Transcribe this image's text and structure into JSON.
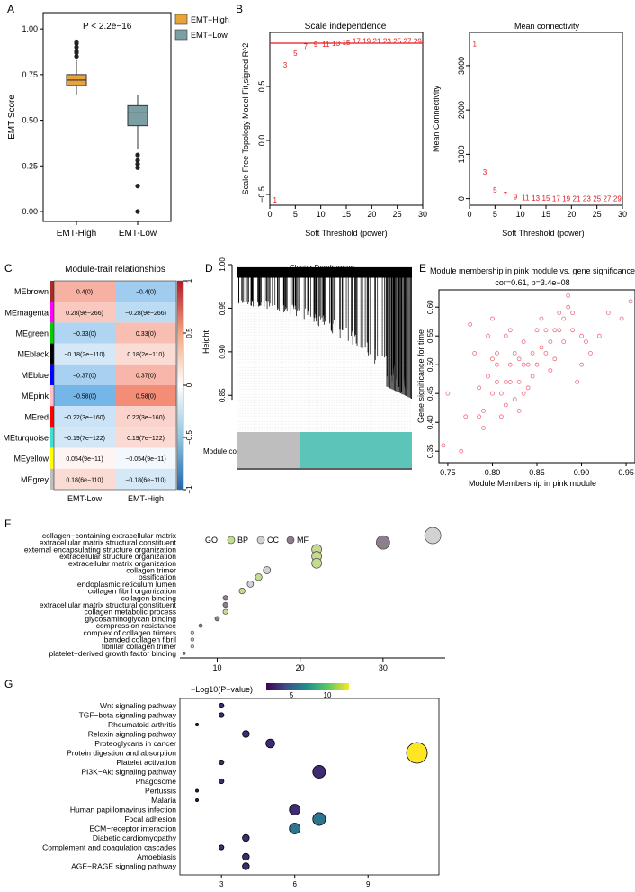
{
  "panel_labels": {
    "a": "A",
    "b": "B",
    "c": "C",
    "d": "D",
    "e": "E",
    "f": "F",
    "g": "G"
  },
  "colors": {
    "emt_high": "#E8A33B",
    "emt_low": "#7C9FA3",
    "threshold_red": "#E31A1C",
    "turquoise": "#5CC4B9",
    "grey": "#BEBEBE",
    "pink_point": "#F06B7E"
  },
  "chart_data": [
    {
      "id": "A",
      "type": "box",
      "title": "",
      "xlabel": "",
      "ylabel": "EMT Score",
      "ylim": [
        0,
        1.05
      ],
      "yticks": [
        0.0,
        0.25,
        0.5,
        0.75,
        1.0
      ],
      "ytick_labels": [
        "0.00",
        "0.25",
        "0.50",
        "0.75",
        "1.00"
      ],
      "annotation": "P < 2.2e−16",
      "categories": [
        "EMT-High",
        "EMT-Low"
      ],
      "legend": {
        "position": "top-right",
        "entries": [
          "EMT−High",
          "EMT−Low"
        ]
      },
      "boxes": [
        {
          "name": "EMT-High",
          "min": 0.64,
          "q1": 0.69,
          "median": 0.72,
          "q3": 0.75,
          "max": 0.83,
          "outliers": [
            0.85,
            0.87,
            0.88,
            0.9,
            0.92,
            0.93
          ]
        },
        {
          "name": "EMT-Low",
          "min": 0.34,
          "q1": 0.47,
          "median": 0.54,
          "q3": 0.58,
          "max": 0.64,
          "outliers": [
            0.0,
            0.14,
            0.24,
            0.26,
            0.28,
            0.31
          ]
        }
      ]
    },
    {
      "id": "B1",
      "type": "scatter",
      "title": "Scale independence",
      "xlabel": "Soft Threshold (power)",
      "ylabel": "Scale Free Topology Model Fit,signed R^2",
      "xlim": [
        0,
        30
      ],
      "ylim": [
        -0.6,
        1.0
      ],
      "xticks": [
        0,
        5,
        10,
        15,
        20,
        25,
        30
      ],
      "yticks": [
        -0.5,
        0.0,
        0.5
      ],
      "ytick_labels": [
        "−0.5",
        "0.0",
        "0.5"
      ],
      "hline": 0.9,
      "points": [
        {
          "x": 1,
          "y": -0.55,
          "label": "1"
        },
        {
          "x": 3,
          "y": 0.7,
          "label": "3"
        },
        {
          "x": 5,
          "y": 0.81,
          "label": "5"
        },
        {
          "x": 7,
          "y": 0.87,
          "label": "7"
        },
        {
          "x": 9,
          "y": 0.89,
          "label": "9"
        },
        {
          "x": 11,
          "y": 0.89,
          "label": "11"
        },
        {
          "x": 13,
          "y": 0.9,
          "label": "13"
        },
        {
          "x": 15,
          "y": 0.91,
          "label": "15"
        },
        {
          "x": 17,
          "y": 0.92,
          "label": "17"
        },
        {
          "x": 19,
          "y": 0.92,
          "label": "19"
        },
        {
          "x": 21,
          "y": 0.92,
          "label": "21"
        },
        {
          "x": 23,
          "y": 0.92,
          "label": "23"
        },
        {
          "x": 25,
          "y": 0.92,
          "label": "25"
        },
        {
          "x": 27,
          "y": 0.92,
          "label": "27"
        },
        {
          "x": 29,
          "y": 0.92,
          "label": "29"
        }
      ]
    },
    {
      "id": "B2",
      "type": "scatter",
      "title": "Mean connectivity",
      "xlabel": "Soft Threshold (power)",
      "ylabel": "Mean Connectivity",
      "xlim": [
        0,
        30
      ],
      "ylim": [
        -150,
        3750
      ],
      "xticks": [
        0,
        5,
        10,
        15,
        20,
        25,
        30
      ],
      "yticks": [
        0,
        1000,
        2000,
        3000
      ],
      "points": [
        {
          "x": 1,
          "y": 3500,
          "label": "1"
        },
        {
          "x": 3,
          "y": 600,
          "label": "3"
        },
        {
          "x": 5,
          "y": 200,
          "label": "5"
        },
        {
          "x": 7,
          "y": 90,
          "label": "7"
        },
        {
          "x": 9,
          "y": 45,
          "label": "9"
        },
        {
          "x": 11,
          "y": 25,
          "label": "11"
        },
        {
          "x": 13,
          "y": 15,
          "label": "13"
        },
        {
          "x": 15,
          "y": 10,
          "label": "15"
        },
        {
          "x": 17,
          "y": 7,
          "label": "17"
        },
        {
          "x": 19,
          "y": 5,
          "label": "19"
        },
        {
          "x": 21,
          "y": 3,
          "label": "21"
        },
        {
          "x": 23,
          "y": 2,
          "label": "23"
        },
        {
          "x": 25,
          "y": 1,
          "label": "25"
        },
        {
          "x": 27,
          "y": 1,
          "label": "27"
        },
        {
          "x": 29,
          "y": 1,
          "label": "29"
        }
      ]
    },
    {
      "id": "C",
      "type": "heatmap",
      "title": "Module-trait relationships",
      "columns": [
        "EMT-Low",
        "EMT-High"
      ],
      "rows": [
        "MEbrown",
        "MEmagenta",
        "MEgreen",
        "MEblack",
        "MEblue",
        "MEpink",
        "MEred",
        "MEturquoise",
        "MEyellow",
        "MEgrey"
      ],
      "row_colors": [
        "#A52A2A",
        "#FF00FF",
        "#00CC00",
        "#000000",
        "#0000FF",
        "#FFC0CB",
        "#FF0000",
        "#40E0D0",
        "#FFFF00",
        "#BEBEBE"
      ],
      "values": [
        [
          0.4,
          -0.4
        ],
        [
          0.28,
          -0.28
        ],
        [
          -0.33,
          0.33
        ],
        [
          -0.18,
          0.18
        ],
        [
          -0.37,
          0.37
        ],
        [
          -0.58,
          0.58
        ],
        [
          -0.22,
          0.22
        ],
        [
          -0.19,
          0.19
        ],
        [
          0.054,
          -0.054
        ],
        [
          0.18,
          -0.18
        ]
      ],
      "cell_labels": [
        [
          "0.4(0)",
          "−0.4(0)"
        ],
        [
          "0.28(9e−266)",
          "−0.28(9e−266)"
        ],
        [
          "−0.33(0)",
          "0.33(0)"
        ],
        [
          "−0.18(2e−110)",
          "0.18(2e−110)"
        ],
        [
          "−0.37(0)",
          "0.37(0)"
        ],
        [
          "−0.58(0)",
          "0.58(0)"
        ],
        [
          "−0.22(3e−160)",
          "0.22(3e−160)"
        ],
        [
          "−0.19(7e−122)",
          "0.19(7e−122)"
        ],
        [
          "0.054(9e−11)",
          "−0.054(9e−11)"
        ],
        [
          "0.18(6e−110)",
          "−0.18(6e−110)"
        ]
      ],
      "colorbar": {
        "range": [
          -1,
          1
        ],
        "ticks": [
          1,
          0.5,
          0,
          -0.5,
          -1
        ],
        "tick_labels": [
          "1",
          "0.5",
          "0",
          "−0.5",
          "−1"
        ]
      }
    },
    {
      "id": "D",
      "type": "dendrogram",
      "title": "Cluster Dendrogram",
      "ylabel": "Height",
      "ylim": [
        0.81,
        1.0
      ],
      "yticks": [
        0.85,
        0.9,
        0.95,
        1.0
      ],
      "ytick_labels": [
        "0.85",
        "0.90",
        "0.95",
        "1.00"
      ],
      "module_label": "Module colors",
      "modules": [
        {
          "name": "grey",
          "fraction": 0.36
        },
        {
          "name": "turquoise",
          "fraction": 0.64
        }
      ]
    },
    {
      "id": "E",
      "type": "scatter",
      "title": "Module membership in pink module vs. gene significance",
      "subtitle": "cor=0.61, p=3.4e−08",
      "xlabel": "Module Membership in pink module",
      "ylabel": "Gene significance for time",
      "xlim": [
        0.74,
        0.96
      ],
      "ylim": [
        0.33,
        0.63
      ],
      "xticks": [
        0.75,
        0.8,
        0.85,
        0.9,
        0.95
      ],
      "yticks": [
        0.35,
        0.4,
        0.45,
        0.5,
        0.55,
        0.6
      ],
      "x": [
        0.745,
        0.75,
        0.765,
        0.77,
        0.775,
        0.78,
        0.785,
        0.785,
        0.79,
        0.79,
        0.795,
        0.795,
        0.8,
        0.8,
        0.8,
        0.805,
        0.805,
        0.805,
        0.81,
        0.81,
        0.815,
        0.815,
        0.815,
        0.82,
        0.82,
        0.82,
        0.825,
        0.825,
        0.83,
        0.83,
        0.83,
        0.835,
        0.835,
        0.835,
        0.84,
        0.84,
        0.845,
        0.845,
        0.85,
        0.85,
        0.855,
        0.855,
        0.86,
        0.86,
        0.865,
        0.865,
        0.87,
        0.87,
        0.875,
        0.875,
        0.88,
        0.88,
        0.885,
        0.885,
        0.89,
        0.89,
        0.895,
        0.9,
        0.9,
        0.905,
        0.91,
        0.92,
        0.93,
        0.945,
        0.955
      ],
      "y": [
        0.36,
        0.45,
        0.35,
        0.41,
        0.57,
        0.52,
        0.41,
        0.46,
        0.39,
        0.42,
        0.55,
        0.48,
        0.51,
        0.58,
        0.45,
        0.52,
        0.5,
        0.47,
        0.41,
        0.45,
        0.47,
        0.55,
        0.43,
        0.56,
        0.5,
        0.47,
        0.52,
        0.44,
        0.47,
        0.51,
        0.42,
        0.54,
        0.5,
        0.45,
        0.5,
        0.46,
        0.52,
        0.48,
        0.56,
        0.5,
        0.53,
        0.58,
        0.56,
        0.52,
        0.54,
        0.49,
        0.56,
        0.51,
        0.56,
        0.59,
        0.58,
        0.54,
        0.6,
        0.62,
        0.56,
        0.59,
        0.47,
        0.55,
        0.5,
        0.54,
        0.52,
        0.55,
        0.59,
        0.58,
        0.61
      ]
    },
    {
      "id": "F",
      "type": "bubble",
      "title": "",
      "legend": {
        "title": "GO",
        "entries": [
          {
            "name": "BP",
            "color": "#C5DB8F"
          },
          {
            "name": "CC",
            "color": "#D3D1D4"
          },
          {
            "name": "MF",
            "color": "#8C7F8C"
          }
        ]
      },
      "xticks": [
        10,
        20,
        30
      ],
      "xlim": [
        5.5,
        37.5
      ],
      "terms": [
        {
          "name": "collagen−containing extracellular matrix",
          "x": 36,
          "ont": "CC",
          "size": 36
        },
        {
          "name": "extracellular matrix structural constituent",
          "x": 30,
          "ont": "MF",
          "size": 30
        },
        {
          "name": "external encapsulating structure organization",
          "x": 22,
          "ont": "BP",
          "size": 22
        },
        {
          "name": "extracellular structure organization",
          "x": 22,
          "ont": "BP",
          "size": 22
        },
        {
          "name": "extracellular matrix organization",
          "x": 22,
          "ont": "BP",
          "size": 22
        },
        {
          "name": "collagen trimer",
          "x": 16,
          "ont": "CC",
          "size": 16
        },
        {
          "name": "ossification",
          "x": 15,
          "ont": "BP",
          "size": 15
        },
        {
          "name": "endoplasmic reticulum lumen",
          "x": 14,
          "ont": "CC",
          "size": 14
        },
        {
          "name": "collagen fibril organization",
          "x": 13,
          "ont": "BP",
          "size": 13
        },
        {
          "name": "collagen binding",
          "x": 11,
          "ont": "MF",
          "size": 11
        },
        {
          "name": "extracellular matrix structural constituent",
          "x": 11,
          "ont": "MF",
          "size": 11
        },
        {
          "name": "collagen metabolic process",
          "x": 11,
          "ont": "BP",
          "size": 11
        },
        {
          "name": "glycosaminoglycan binding",
          "x": 10,
          "ont": "MF",
          "size": 10
        },
        {
          "name": "compression resistance",
          "x": 8,
          "ont": "MF",
          "size": 8
        },
        {
          "name": "complex of collagen trimers",
          "x": 7,
          "ont": "CC",
          "size": 7
        },
        {
          "name": "banded collagen fibril",
          "x": 7,
          "ont": "CC",
          "size": 7
        },
        {
          "name": "fibrillar collagen trimer",
          "x": 7,
          "ont": "CC",
          "size": 7
        },
        {
          "name": "platelet−derived growth factor binding",
          "x": 6,
          "ont": "MF",
          "size": 6
        }
      ]
    },
    {
      "id": "G",
      "type": "bubble",
      "title": "",
      "colorbar": {
        "title": "−Log10(P−value)",
        "range": [
          1.5,
          13
        ],
        "ticks": [
          5,
          10
        ],
        "tick_labels": [
          "5",
          "10"
        ]
      },
      "xticks": [
        3,
        6,
        9
      ],
      "tick_labels_x": [
        "3",
        "6",
        "9"
      ],
      "xlim": [
        1.3,
        11.9
      ],
      "terms": [
        {
          "name": "Wnt signaling pathway",
          "x": 3,
          "p": 3
        },
        {
          "name": "TGF−beta signaling pathway",
          "x": 3,
          "p": 3
        },
        {
          "name": "Rheumatoid arthritis",
          "x": 2,
          "p": 2
        },
        {
          "name": "Relaxin signaling pathway",
          "x": 4,
          "p": 3
        },
        {
          "name": "Proteoglycans in cancer",
          "x": 5,
          "p": 3
        },
        {
          "name": "Protein digestion and absorption",
          "x": 11,
          "p": 13
        },
        {
          "name": "Platelet activation",
          "x": 3,
          "p": 3
        },
        {
          "name": "PI3K−Akt signaling pathway",
          "x": 7,
          "p": 3
        },
        {
          "name": "Phagosome",
          "x": 3,
          "p": 3
        },
        {
          "name": "Pertussis",
          "x": 2,
          "p": 2
        },
        {
          "name": "Malaria",
          "x": 2,
          "p": 2
        },
        {
          "name": "Human papillomavirus infection",
          "x": 6,
          "p": 3
        },
        {
          "name": "Focal adhesion",
          "x": 7,
          "p": 6
        },
        {
          "name": "ECM−receptor interaction",
          "x": 6,
          "p": 6
        },
        {
          "name": "Diabetic cardiomyopathy",
          "x": 4,
          "p": 3
        },
        {
          "name": "Complement and coagulation cascades",
          "x": 3,
          "p": 3
        },
        {
          "name": "Amoebiasis",
          "x": 4,
          "p": 3
        },
        {
          "name": "AGE−RAGE signaling pathway",
          "x": 4,
          "p": 3
        }
      ]
    }
  ]
}
